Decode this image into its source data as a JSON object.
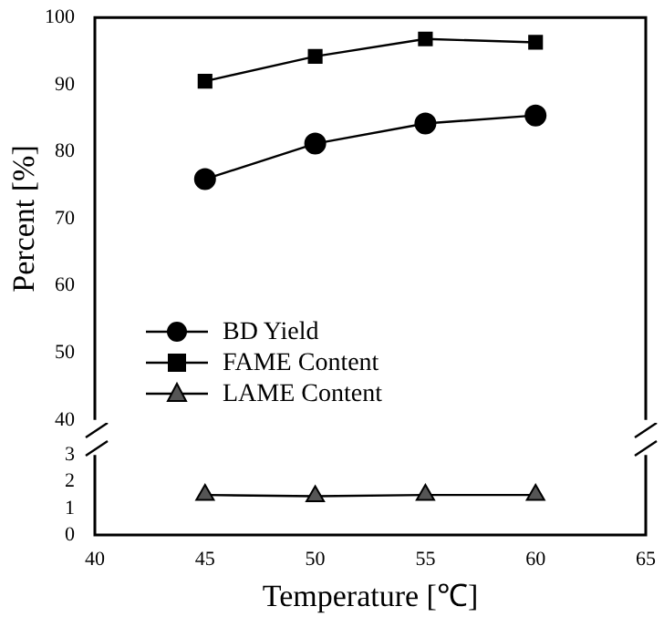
{
  "chart_data": [
    {
      "type": "line",
      "ylabel": "Percent [%]",
      "x": [
        45,
        50,
        55,
        60
      ],
      "xlim": [
        40,
        65
      ],
      "xticks": [
        40,
        45,
        50,
        55,
        60,
        65
      ],
      "ylim": [
        40,
        100
      ],
      "yticks": [
        40,
        50,
        60,
        70,
        80,
        90,
        100
      ],
      "tick_labels": "y",
      "grid": false,
      "legend": "bottom left",
      "series": [
        {
          "name": "BD Yield",
          "color": "#000000",
          "marker": "circle",
          "values": [
            75.9,
            81.2,
            84.2,
            85.4
          ]
        },
        {
          "name": "FAME Content",
          "color": "#000000",
          "marker": "square",
          "values": [
            90.5,
            94.2,
            96.8,
            96.3
          ]
        }
      ]
    },
    {
      "type": "line",
      "xlabel": "Temperature [℃]",
      "x": [
        45,
        50,
        55,
        60
      ],
      "xlim": [
        40,
        65
      ],
      "xticks": [
        40,
        45,
        50,
        55,
        60,
        65
      ],
      "ylim": [
        0,
        3
      ],
      "yticks": [
        0,
        1,
        2,
        3
      ],
      "grid": false,
      "series": [
        {
          "name": "LAME Content",
          "color": "#555555",
          "marker": "triangle",
          "values": [
            1.5,
            1.45,
            1.5,
            1.5
          ]
        }
      ]
    }
  ]
}
